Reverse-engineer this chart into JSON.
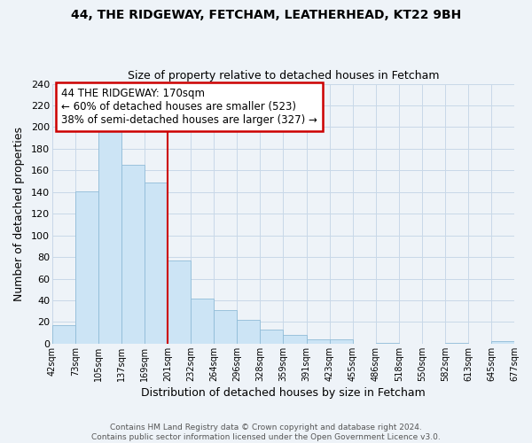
{
  "title": "44, THE RIDGEWAY, FETCHAM, LEATHERHEAD, KT22 9BH",
  "subtitle": "Size of property relative to detached houses in Fetcham",
  "xlabel": "Distribution of detached houses by size in Fetcham",
  "ylabel": "Number of detached properties",
  "bin_labels": [
    "42sqm",
    "73sqm",
    "105sqm",
    "137sqm",
    "169sqm",
    "201sqm",
    "232sqm",
    "264sqm",
    "296sqm",
    "328sqm",
    "359sqm",
    "391sqm",
    "423sqm",
    "455sqm",
    "486sqm",
    "518sqm",
    "550sqm",
    "582sqm",
    "613sqm",
    "645sqm",
    "677sqm"
  ],
  "bar_values": [
    17,
    141,
    198,
    165,
    149,
    77,
    42,
    31,
    22,
    13,
    8,
    4,
    4,
    0,
    1,
    0,
    0,
    1,
    0,
    2
  ],
  "bar_color": "#cce4f5",
  "bar_edge_color": "#90bcd8",
  "vline_x_index": 4,
  "vline_color": "#cc0000",
  "annotation_text": "44 THE RIDGEWAY: 170sqm\n← 60% of detached houses are smaller (523)\n38% of semi-detached houses are larger (327) →",
  "annotation_box_color": "#ffffff",
  "annotation_box_edge_color": "#cc0000",
  "ylim": [
    0,
    240
  ],
  "grid_color": "#c8d8e8",
  "footer_text": "Contains HM Land Registry data © Crown copyright and database right 2024.\nContains public sector information licensed under the Open Government Licence v3.0.",
  "bg_color": "#eef3f8"
}
